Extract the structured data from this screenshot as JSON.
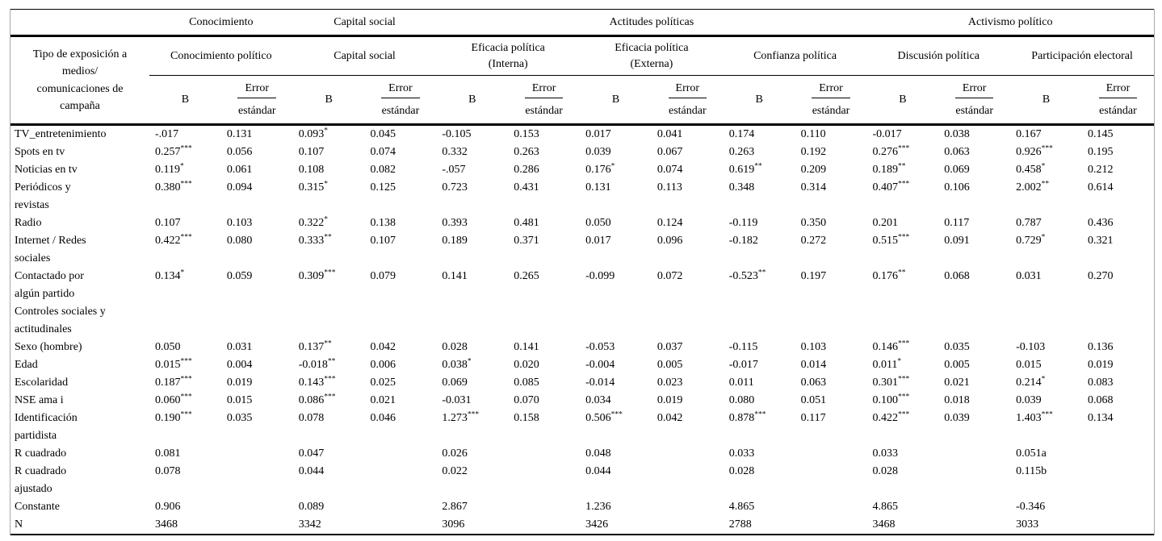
{
  "table": {
    "corner_title_lines": [
      "Tipo de exposición a",
      "medios/",
      "comunicaciones de",
      "campaña"
    ],
    "groups": [
      {
        "label": "Conocimiento",
        "models": 1
      },
      {
        "label": "Capital social",
        "models": 1
      },
      {
        "label": "Actitudes políticas",
        "models": 3
      },
      {
        "label": "Activismo político",
        "models": 2
      }
    ],
    "models": [
      {
        "lines": [
          "Conocimiento político"
        ]
      },
      {
        "lines": [
          "Capital social"
        ]
      },
      {
        "lines": [
          "Eficacia política",
          "(Interna)"
        ]
      },
      {
        "lines": [
          "Eficacia política",
          "(Externa)"
        ]
      },
      {
        "lines": [
          "Confianza política"
        ]
      },
      {
        "lines": [
          "Discusión política"
        ]
      },
      {
        "lines": [
          "Participación electoral"
        ]
      }
    ],
    "stat_labels": {
      "b": "B",
      "error_line1": "Error",
      "error_line2": "estándar"
    },
    "rows": [
      {
        "label_lines": [
          "TV_entretenimiento"
        ],
        "section": false,
        "cells": [
          "-.017",
          "0.131",
          "0.093*",
          "0.045",
          "-0.105",
          "0.153",
          "0.017",
          "0.041",
          "0.174",
          "0.110",
          "-0.017",
          "0.038",
          "0.167",
          "0.145"
        ]
      },
      {
        "label_lines": [
          "Spots en tv"
        ],
        "section": false,
        "cells": [
          "0.257***",
          "0.056",
          "0.107",
          "0.074",
          "0.332",
          "0.263",
          "0.039",
          "0.067",
          "0.263",
          "0.192",
          "0.276***",
          "0.063",
          "0.926***",
          "0.195"
        ]
      },
      {
        "label_lines": [
          "Noticias en tv"
        ],
        "section": false,
        "cells": [
          "0.119*",
          "0.061",
          "0.108",
          "0.082",
          "-.057",
          "0.286",
          "0.176*",
          "0.074",
          "0.619**",
          "0.209",
          "0.189**",
          "0.069",
          "0.458*",
          "0.212"
        ]
      },
      {
        "label_lines": [
          "Periódicos y",
          "revistas"
        ],
        "section": false,
        "cells": [
          "0.380***",
          "0.094",
          "0.315*",
          "0.125",
          "0.723",
          "0.431",
          "0.131",
          "0.113",
          "0.348",
          "0.314",
          "0.407***",
          "0.106",
          "2.002**",
          "0.614"
        ]
      },
      {
        "label_lines": [
          "Radio"
        ],
        "section": false,
        "cells": [
          "0.107",
          "0.103",
          "0.322*",
          "0.138",
          "0.393",
          "0.481",
          "0.050",
          "0.124",
          "-0.119",
          "0.350",
          "0.201",
          "0.117",
          "0.787",
          "0.436"
        ]
      },
      {
        "label_lines": [
          "Internet / Redes",
          "sociales"
        ],
        "section": false,
        "cells": [
          "0.422***",
          "0.080",
          "0.333**",
          "0.107",
          "0.189",
          "0.371",
          "0.017",
          "0.096",
          "-0.182",
          "0.272",
          "0.515***",
          "0.091",
          "0.729*",
          "0.321"
        ]
      },
      {
        "label_lines": [
          "Contactado por",
          "algún partido"
        ],
        "section": false,
        "cells": [
          "0.134*",
          "0.059",
          "0.309***",
          "0.079",
          "0.141",
          "0.265",
          "-0.099",
          "0.072",
          "-0.523**",
          "0.197",
          "0.176**",
          "0.068",
          "0.031",
          "0.270"
        ]
      },
      {
        "label_lines": [
          "Controles sociales y",
          "actitudinales"
        ],
        "section": true,
        "cells": [
          "",
          "",
          "",
          "",
          "",
          "",
          "",
          "",
          "",
          "",
          "",
          "",
          "",
          ""
        ]
      },
      {
        "label_lines": [
          "Sexo (hombre)"
        ],
        "section": false,
        "cells": [
          "0.050",
          "0.031",
          "0.137**",
          "0.042",
          "0.028",
          "0.141",
          "-0.053",
          "0.037",
          "-0.115",
          "0.103",
          "0.146***",
          "0.035",
          "-0.103",
          "0.136"
        ]
      },
      {
        "label_lines": [
          "Edad"
        ],
        "section": false,
        "cells": [
          "0.015***",
          "0.004",
          "-0.018**",
          "0.006",
          "0.038*",
          "0.020",
          "-0.004",
          "0.005",
          "-0.017",
          "0.014",
          "0.011*",
          "0.005",
          "0.015",
          "0.019"
        ]
      },
      {
        "label_lines": [
          "Escolaridad"
        ],
        "section": false,
        "cells": [
          "0.187***",
          "0.019",
          "0.143***",
          "0.025",
          "0.069",
          "0.085",
          "-0.014",
          "0.023",
          "0.011",
          "0.063",
          "0.301***",
          "0.021",
          "0.214*",
          "0.083"
        ]
      },
      {
        "label_lines": [
          "NSE ama i"
        ],
        "section": false,
        "cells": [
          "0.060***",
          "0.015",
          "0.086***",
          "0.021",
          "-0.031",
          "0.070",
          "0.034",
          "0.019",
          "0.080",
          "0.051",
          "0.100***",
          "0.018",
          "0.039",
          "0.068"
        ]
      },
      {
        "label_lines": [
          "Identificación",
          "partidista"
        ],
        "section": false,
        "cells": [
          "0.190***",
          "0.035",
          "0.078",
          "0.046",
          "1.273***",
          "0.158",
          "0.506***",
          "0.042",
          "0.878***",
          "0.117",
          "0.422***",
          "0.039",
          "1.403***",
          "0.134"
        ]
      },
      {
        "label_lines": [
          "R cuadrado"
        ],
        "section": false,
        "cells": [
          "0.081",
          "",
          "0.047",
          "",
          "0.026",
          "",
          "0.048",
          "",
          "0.033",
          "",
          "0.033",
          "",
          "0.051a",
          ""
        ]
      },
      {
        "label_lines": [
          "R cuadrado",
          "ajustado"
        ],
        "section": false,
        "cells": [
          "0.078",
          "",
          "0.044",
          "",
          "0.022",
          "",
          "0.044",
          "",
          "0.028",
          "",
          "0.028",
          "",
          "0.115b",
          ""
        ]
      },
      {
        "label_lines": [
          "Constante"
        ],
        "section": false,
        "cells": [
          "0.906",
          "",
          "0.089",
          "",
          "2.867",
          "",
          "1.236",
          "",
          "4.865",
          "",
          "4.865",
          "",
          "-0.346",
          ""
        ]
      },
      {
        "label_lines": [
          "N"
        ],
        "section": false,
        "cells": [
          "3468",
          "",
          "3342",
          "",
          "3096",
          "",
          "3426",
          "",
          "2788",
          "",
          "3468",
          "",
          "3033",
          ""
        ]
      }
    ]
  }
}
